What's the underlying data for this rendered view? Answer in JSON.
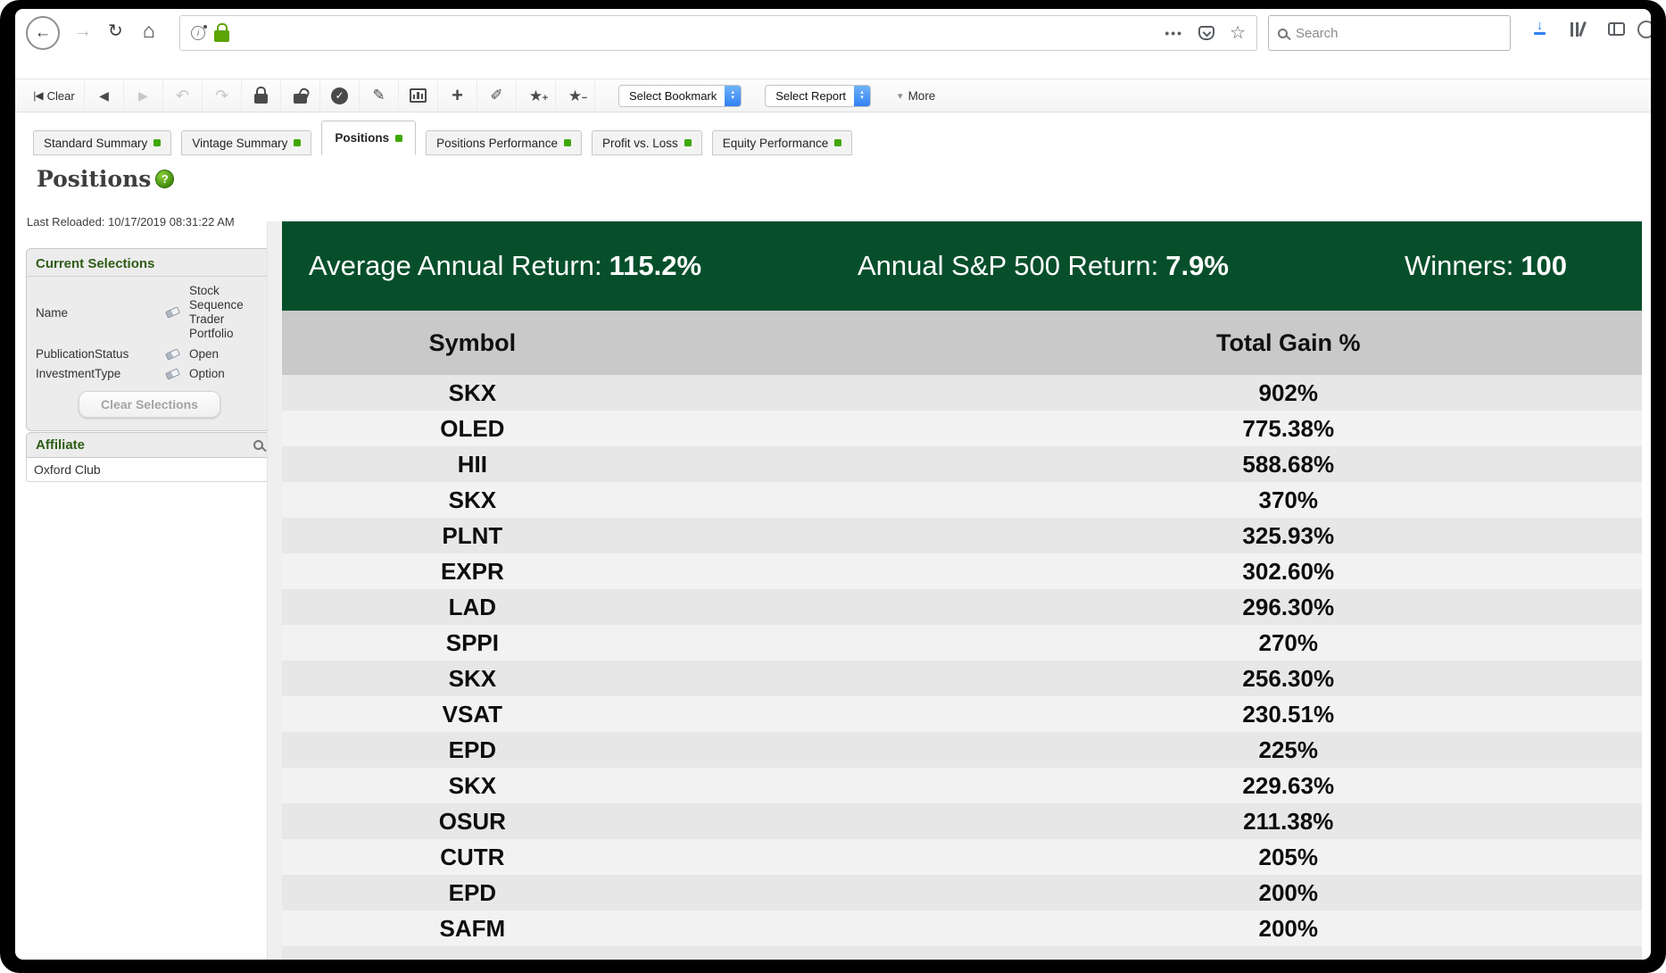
{
  "browser": {
    "search_placeholder": "Search"
  },
  "icons": {
    "back": "←",
    "forward": "→",
    "reload": "↻",
    "home": "⌂",
    "dots": "•••",
    "star_outline": "☆",
    "skip_start": "|◀",
    "nav_back": "◀",
    "nav_forward": "▶",
    "undo": "↶",
    "redo": "↷",
    "check": "✓",
    "edit": "✎",
    "marker": "✐",
    "plus": "+",
    "star": "★",
    "star_plus": "+",
    "star_minus": "−",
    "more_caret": "▾",
    "chevron_up": "▴",
    "chevron_down": "▾",
    "download_arrow": "↓",
    "question": "?",
    "info": "i"
  },
  "app_toolbar": {
    "clear": "Clear",
    "select_bookmark": "Select Bookmark",
    "select_report": "Select Report",
    "more": "More"
  },
  "tabs": [
    {
      "label": "Standard Summary",
      "active": false
    },
    {
      "label": "Vintage Summary",
      "active": false
    },
    {
      "label": "Positions",
      "active": true
    },
    {
      "label": "Positions Performance",
      "active": false
    },
    {
      "label": "Profit vs. Loss",
      "active": false
    },
    {
      "label": "Equity Performance",
      "active": false
    }
  ],
  "page": {
    "title": "Positions",
    "last_reloaded": "Last Reloaded: 10/17/2019 08:31:22 AM"
  },
  "sidebar": {
    "current_selections": {
      "title": "Current Selections",
      "rows": [
        {
          "label": "Name",
          "value": "Stock Sequence Trader Portfolio"
        },
        {
          "label": "PublicationStatus",
          "value": "Open"
        },
        {
          "label": "InvestmentType",
          "value": "Option"
        }
      ],
      "clear_button": "Clear Selections"
    },
    "affiliate": {
      "title": "Affiliate",
      "value": "Oxford Club"
    }
  },
  "banner": {
    "background": "#074f2b",
    "items": [
      {
        "label": "Average Annual Return:",
        "value": "115.2%"
      },
      {
        "label": "Annual S&P 500 Return:",
        "value": "7.9%"
      },
      {
        "label": "Winners:",
        "value": "100"
      }
    ]
  },
  "table": {
    "columns": [
      "Symbol",
      "Total Gain %"
    ],
    "rows": [
      [
        "SKX",
        "902%"
      ],
      [
        "OLED",
        "775.38%"
      ],
      [
        "HII",
        "588.68%"
      ],
      [
        "SKX",
        "370%"
      ],
      [
        "PLNT",
        "325.93%"
      ],
      [
        "EXPR",
        "302.60%"
      ],
      [
        "LAD",
        "296.30%"
      ],
      [
        "SPPI",
        "270%"
      ],
      [
        "SKX",
        "256.30%"
      ],
      [
        "VSAT",
        "230.51%"
      ],
      [
        "EPD",
        "225%"
      ],
      [
        "SKX",
        "229.63%"
      ],
      [
        "OSUR",
        "211.38%"
      ],
      [
        "CUTR",
        "205%"
      ],
      [
        "EPD",
        "200%"
      ],
      [
        "SAFM",
        "200%"
      ]
    ]
  },
  "colors": {
    "banner_green": "#074f2b",
    "tab_indicator_green": "#3fa804",
    "lock_green": "#5ca304",
    "download_blue": "#2f80f2",
    "header_gray": "#c9c9c9",
    "row_dark": "#e7e7e7",
    "row_light": "#f2f2f2",
    "sidebar_green_text": "#2e5c16"
  }
}
